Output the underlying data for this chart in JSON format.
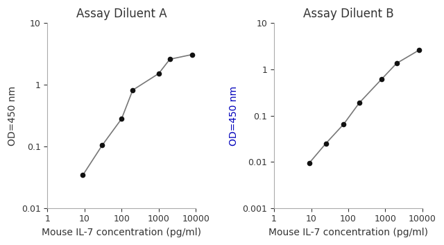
{
  "panel_A": {
    "title": "Assay Diluent A",
    "x": [
      9,
      30,
      100,
      200,
      1000,
      2000,
      8000
    ],
    "y": [
      0.034,
      0.104,
      0.28,
      0.82,
      1.52,
      2.6,
      3.1
    ],
    "xlim": [
      1,
      10000
    ],
    "ylim": [
      0.01,
      10
    ],
    "xlabel": "Mouse IL-7 concentration (pg/ml)",
    "ylabel": "OD=450 nm",
    "xticks": [
      1,
      10,
      100,
      1000,
      10000
    ],
    "yticks": [
      0.01,
      0.1,
      1,
      10
    ],
    "ylabel_color": "#333333",
    "title_color": "#333333"
  },
  "panel_B": {
    "title": "Assay Diluent B",
    "x": [
      9,
      25,
      75,
      200,
      800,
      2000,
      8000
    ],
    "y": [
      0.0095,
      0.025,
      0.065,
      0.19,
      0.62,
      1.35,
      2.6
    ],
    "xlim": [
      1,
      10000
    ],
    "ylim": [
      0.001,
      10
    ],
    "xlabel": "Mouse IL-7 concentration (pg/ml)",
    "ylabel": "OD=450 nm",
    "xticks": [
      1,
      10,
      100,
      1000,
      10000
    ],
    "yticks": [
      0.001,
      0.01,
      0.1,
      1,
      10
    ],
    "ylabel_color": "#0000bb",
    "title_color": "#333333"
  },
  "line_color": "#777777",
  "marker_color": "#111111",
  "marker_size": 5.5,
  "line_width": 1.2,
  "bg_color": "#ffffff",
  "spine_color": "#aaaaaa",
  "tick_color": "#333333",
  "title_fontsize": 12,
  "label_fontsize": 10,
  "tick_fontsize": 9
}
